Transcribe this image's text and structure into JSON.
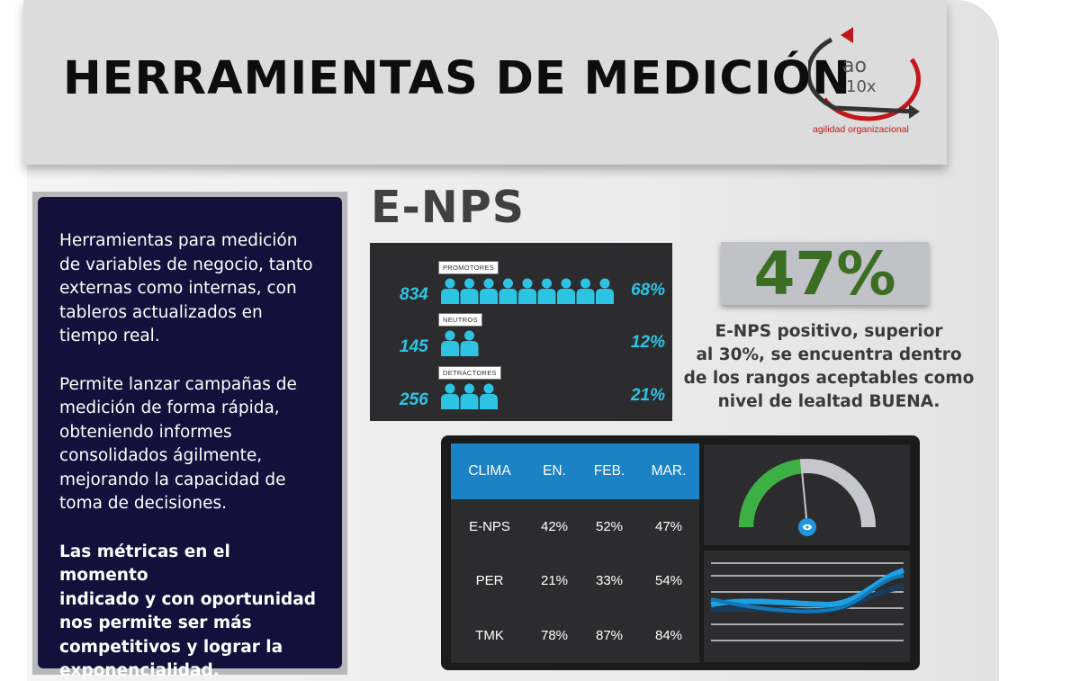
{
  "header": {
    "title": "HERRAMIENTAS DE MEDICIÓN",
    "logo": {
      "line1": "ao",
      "line2": "10x",
      "tagline": "agilidad organizacional"
    }
  },
  "sidebar": {
    "paragraph1": "Herramientas para medición\nde variables de negocio, tanto\nexternas como internas, con\ntableros actualizados en\ntiempo real.",
    "paragraph2": "Permite lanzar campañas de\nmedición de forma rápida,\nobteniendo informes\nconsolidados ágilmente,\nmejorando la capacidad de\ntoma de decisiones.",
    "highlight": "Las métricas en el momento\nindicado y con oportunidad\nnos permite ser más\ncompetitivos y lograr la\nexponencialidad."
  },
  "enps": {
    "title": "E-NPS",
    "rows": [
      {
        "tag": "PROMOTORES",
        "count": "834",
        "percent": "68%",
        "icons": 9
      },
      {
        "tag": "NEUTROS",
        "count": "145",
        "percent": "12%",
        "icons": 2
      },
      {
        "tag": "DETRACTORES",
        "count": "256",
        "percent": "21%",
        "icons": 3
      }
    ],
    "score": "47%",
    "description": "E-NPS positivo, superior\nal 30%, se encuentra dentro\nde los rangos aceptables como\nnivel de lealtad BUENA."
  },
  "dashboard": {
    "headers": [
      "CLIMA",
      "EN.",
      "FEB.",
      "MAR."
    ],
    "rows": [
      [
        "E-NPS",
        "42%",
        "52%",
        "47%"
      ],
      [
        "PER",
        "21%",
        "33%",
        "54%"
      ],
      [
        "TMK",
        "78%",
        "87%",
        "84%"
      ]
    ],
    "gauge_level": 0.47
  },
  "colors": {
    "accent_cyan": "#2dc4e4",
    "header_blue": "#1b82c5",
    "score_green": "#3b6e23",
    "card_navy": "#14103c",
    "logo_red": "#c01818",
    "gauge_green": "#3cb043",
    "gauge_gray": "#c6c7cc"
  }
}
